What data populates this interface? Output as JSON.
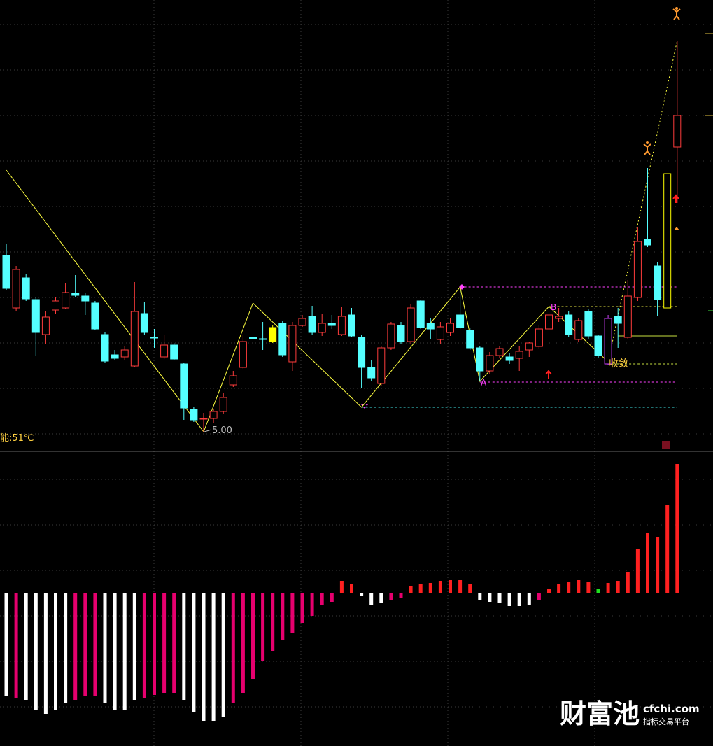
{
  "chart_data": [
    {
      "type": "candlestick",
      "open": [
        7.52,
        6.77,
        7.2,
        6.89,
        6.39,
        6.74,
        6.77,
        6.98,
        6.94,
        6.84,
        6.39,
        6.1,
        6.07,
        5.94,
        6.69,
        6.35,
        6.07,
        6.24,
        5.97,
        5.32,
        5.19,
        5.19,
        5.29,
        5.67,
        5.92,
        6.35,
        6.33,
        6.29,
        6.55,
        6.0,
        6.52,
        6.65,
        6.42,
        6.55,
        6.39,
        6.67,
        6.35,
        5.92,
        5.69,
        6.2,
        6.52,
        6.29,
        6.87,
        6.55,
        6.32,
        6.42,
        6.67,
        6.45,
        6.2,
        5.87,
        6.09,
        6.07,
        6.05,
        6.17,
        6.22,
        6.47,
        6.62,
        6.67,
        6.32,
        6.72,
        6.37,
        5.97,
        6.65,
        6.35,
        6.92,
        7.75,
        7.37,
        6.77,
        9.07
      ],
      "high": [
        7.69,
        7.37,
        7.25,
        6.92,
        6.72,
        6.92,
        7.12,
        7.24,
        6.99,
        6.87,
        6.42,
        6.17,
        6.22,
        7.14,
        6.85,
        6.47,
        6.39,
        6.27,
        5.99,
        5.35,
        5.27,
        5.32,
        5.55,
        5.87,
        6.39,
        6.55,
        6.57,
        6.52,
        6.59,
        6.57,
        6.67,
        6.8,
        6.69,
        6.67,
        6.79,
        6.77,
        6.39,
        6.02,
        6.22,
        6.57,
        6.57,
        6.82,
        6.89,
        6.62,
        6.57,
        6.62,
        7.02,
        6.49,
        6.22,
        6.14,
        6.22,
        6.12,
        6.22,
        6.29,
        6.52,
        6.77,
        6.77,
        6.72,
        6.62,
        6.75,
        6.39,
        6.67,
        6.77,
        7.17,
        7.92,
        8.77,
        7.42,
        8.69,
        10.59
      ],
      "low": [
        7.02,
        6.72,
        6.87,
        6.09,
        6.25,
        6.69,
        6.75,
        6.92,
        6.67,
        6.45,
        5.99,
        6.02,
        6.02,
        5.92,
        6.39,
        6.2,
        6.04,
        6.02,
        5.17,
        5.14,
        5.0,
        5.12,
        5.25,
        5.64,
        5.9,
        6.12,
        6.17,
        6.27,
        6.07,
        5.87,
        6.5,
        6.39,
        6.37,
        6.47,
        6.37,
        6.35,
        5.62,
        5.72,
        5.65,
        6.17,
        6.25,
        6.25,
        6.47,
        6.32,
        6.25,
        6.37,
        6.47,
        6.17,
        5.72,
        5.82,
        6.05,
        5.97,
        5.87,
        6.07,
        6.19,
        6.42,
        6.57,
        6.35,
        6.29,
        6.32,
        6.05,
        5.95,
        6.2,
        6.32,
        6.87,
        7.64,
        6.65,
        6.77,
        8.27
      ],
      "close": [
        7.05,
        7.32,
        6.9,
        6.42,
        6.64,
        6.87,
        6.99,
        6.95,
        6.87,
        6.47,
        6.01,
        6.05,
        6.17,
        6.72,
        6.42,
        6.34,
        6.24,
        6.04,
        5.34,
        5.17,
        5.19,
        5.29,
        5.49,
        5.8,
        6.29,
        6.33,
        6.32,
        6.49,
        6.1,
        6.52,
        6.62,
        6.42,
        6.55,
        6.52,
        6.65,
        6.37,
        5.92,
        5.77,
        6.2,
        6.54,
        6.29,
        6.77,
        6.49,
        6.47,
        6.5,
        6.55,
        6.49,
        6.2,
        5.87,
        6.09,
        6.19,
        6.02,
        6.15,
        6.27,
        6.47,
        6.67,
        6.65,
        6.39,
        6.59,
        6.37,
        6.09,
        6.62,
        6.55,
        6.94,
        7.72,
        7.67,
        6.89,
        8.69,
        9.52
      ],
      "up_color": "#ff3c3c",
      "down_color": "#54ffff",
      "highlights": [
        {
          "index": 27,
          "color": "#ffff00",
          "fill": true
        },
        {
          "index": 61,
          "color": "#d040ff",
          "fill": false
        },
        {
          "index": 67,
          "color": "#ffff00",
          "fill": false
        }
      ],
      "ylim": [
        4.77,
        11.17
      ],
      "zigzag": {
        "x": [
          0,
          20,
          25,
          36,
          46,
          48,
          55,
          61,
          68
        ],
        "values": [
          8.74,
          5.0,
          6.84,
          5.35,
          7.07,
          5.72,
          6.79,
          6.0,
          10.59
        ],
        "color": "#ffff40"
      },
      "levels": [
        {
          "value": 7.07,
          "start": 46,
          "color": "#ff40ff",
          "style": "dashed"
        },
        {
          "value": 5.35,
          "start": 36,
          "color": "#40e0e0",
          "style": "dashed"
        },
        {
          "value": 5.71,
          "start": 48,
          "color": "#ff40ff",
          "style": "dashed"
        },
        {
          "value": 5.97,
          "start": 61,
          "color": "#c8e040",
          "style": "dashed"
        },
        {
          "value": 6.79,
          "start": 55,
          "color": "#e0e040",
          "style": "dashed"
        },
        {
          "value": 6.37,
          "start": 62,
          "color": "#c8e040",
          "style": "solid"
        }
      ],
      "low_label": "5.00",
      "indicator_label": "能:51℃",
      "converge_label": "收敛",
      "point_a": "A",
      "point_b": "B"
    },
    {
      "type": "bar",
      "values": [
        -1.48,
        -1.5,
        -1.53,
        -1.68,
        -1.73,
        -1.68,
        -1.58,
        -1.53,
        -1.48,
        -1.48,
        -1.58,
        -1.68,
        -1.68,
        -1.53,
        -1.51,
        -1.46,
        -1.43,
        -1.43,
        -1.53,
        -1.71,
        -1.83,
        -1.83,
        -1.78,
        -1.58,
        -1.43,
        -1.23,
        -0.98,
        -0.83,
        -0.68,
        -0.58,
        -0.43,
        -0.33,
        -0.18,
        -0.13,
        0.17,
        0.12,
        -0.05,
        -0.18,
        -0.15,
        -0.1,
        -0.08,
        0.09,
        0.12,
        0.14,
        0.17,
        0.18,
        0.18,
        0.12,
        -0.11,
        -0.13,
        -0.15,
        -0.19,
        -0.19,
        -0.17,
        -0.1,
        0.05,
        0.13,
        0.15,
        0.18,
        0.15,
        0.05,
        0.14,
        0.17,
        0.3,
        0.63,
        0.85,
        0.79,
        1.26,
        1.84
      ],
      "colors": [
        "#ffffff",
        "#e6006e",
        "#ffffff",
        "#ffffff",
        "#ffffff",
        "#ffffff",
        "#ffffff",
        "#e6006e",
        "#e6006e",
        "#e6006e",
        "#ffffff",
        "#ffffff",
        "#ffffff",
        "#ffffff",
        "#e6006e",
        "#e6006e",
        "#e6006e",
        "#e6006e",
        "#ffffff",
        "#ffffff",
        "#ffffff",
        "#ffffff",
        "#ffffff",
        "#e6006e",
        "#e6006e",
        "#e6006e",
        "#e6006e",
        "#e6006e",
        "#e6006e",
        "#e6006e",
        "#e6006e",
        "#e6006e",
        "#e6006e",
        "#e6006e",
        "#ff2020",
        "#ff2020",
        "#ffffff",
        "#ffffff",
        "#ffffff",
        "#e6006e",
        "#e6006e",
        "#ff2020",
        "#ff2020",
        "#ff2020",
        "#ff2020",
        "#ff2020",
        "#ff2020",
        "#ff2020",
        "#ffffff",
        "#ffffff",
        "#ffffff",
        "#ffffff",
        "#ffffff",
        "#ffffff",
        "#e6006e",
        "#ff2020",
        "#ff2020",
        "#ff2020",
        "#ff2020",
        "#ff2020",
        "#20e020",
        "#ff2020",
        "#ff2020",
        "#ff2020",
        "#ff2020",
        "#ff2020",
        "#ff2020",
        "#ff2020",
        "#ff2020"
      ],
      "ylim": [
        -2.19,
        2.0
      ]
    }
  ],
  "watermark": {
    "brand": "财富池",
    "site": "cfchi.com",
    "tagline": "指标交易平台"
  }
}
